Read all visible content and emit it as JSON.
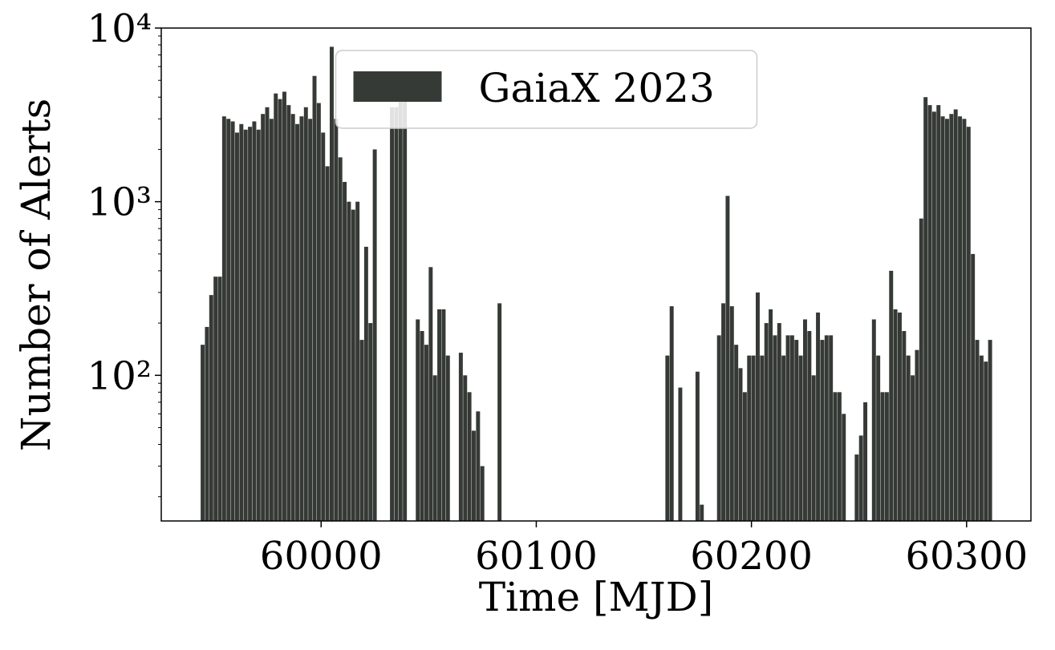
{
  "chart_data": {
    "type": "histogram",
    "xlabel": "Time [MJD]",
    "ylabel": "Number of Alerts",
    "log_y": true,
    "legend": "upper center",
    "xlim": [
      59925.7,
      60329.9
    ],
    "xticks": [
      60000,
      60100,
      60200,
      60300
    ],
    "ylim": [
      14.5,
      10000
    ],
    "yticks": [
      {
        "value": 100,
        "label": "10²"
      },
      {
        "value": 1000,
        "label": "10³"
      },
      {
        "value": 10000,
        "label": "10⁴"
      }
    ],
    "yminorticks": [
      20,
      30,
      40,
      50,
      60,
      70,
      80,
      90,
      200,
      300,
      400,
      500,
      600,
      700,
      800,
      900,
      2000,
      3000,
      4000,
      5000,
      6000,
      7000,
      8000,
      9000
    ],
    "series": [
      {
        "name": "GaiaX 2023",
        "color": "#363a36",
        "bins": [
          59944,
          59946,
          59948,
          59950,
          59952,
          59954,
          59956,
          59958,
          59960,
          59962,
          59964,
          59966,
          59968,
          59970,
          59972,
          59974,
          59976,
          59978,
          59980,
          59982,
          59984,
          59986,
          59988,
          59990,
          59992,
          59994,
          59996,
          59998,
          60000,
          60002,
          60004,
          60006,
          60008,
          60010,
          60012,
          60014,
          60016,
          60018,
          60020,
          60022,
          60024,
          60026,
          60028,
          60030,
          60032,
          60034,
          60036,
          60038,
          60040,
          60042,
          60044,
          60046,
          60048,
          60050,
          60052,
          60054,
          60056,
          60058,
          60060,
          60062,
          60064,
          60066,
          60068,
          60070,
          60072,
          60074,
          60076,
          60078,
          60080,
          60082,
          60084,
          60086,
          60088,
          60090,
          60092,
          60094,
          60096,
          60098,
          60100,
          60102,
          60104,
          60106,
          60108,
          60110,
          60112,
          60114,
          60116,
          60118,
          60120,
          60122,
          60124,
          60126,
          60128,
          60130,
          60132,
          60134,
          60136,
          60138,
          60140,
          60142,
          60144,
          60146,
          60148,
          60150,
          60152,
          60154,
          60156,
          60158,
          60160,
          60162,
          60164,
          60166,
          60168,
          60170,
          60172,
          60174,
          60176,
          60178,
          60180,
          60182,
          60184,
          60186,
          60188,
          60190,
          60192,
          60194,
          60196,
          60198,
          60200,
          60202,
          60204,
          60206,
          60208,
          60210,
          60212,
          60214,
          60216,
          60218,
          60220,
          60222,
          60224,
          60226,
          60228,
          60230,
          60232,
          60234,
          60236,
          60238,
          60240,
          60242,
          60244,
          60246,
          60248,
          60250,
          60252,
          60254,
          60256,
          60258,
          60260,
          60262,
          60264,
          60266,
          60268,
          60270,
          60272,
          60274,
          60276,
          60278,
          60280,
          60282,
          60284,
          60286,
          60288,
          60290,
          60292,
          60294,
          60296,
          60298,
          60300,
          60302,
          60304,
          60306,
          60308,
          60310,
          60312
        ],
        "values": [
          150,
          190,
          290,
          370,
          370,
          3100,
          3000,
          2900,
          2500,
          2800,
          2600,
          2700,
          2900,
          2600,
          3200,
          3500,
          3000,
          4200,
          3900,
          4300,
          3600,
          3200,
          2800,
          3100,
          3500,
          3000,
          5300,
          3700,
          2500,
          1600,
          7800,
          3000,
          1800,
          1300,
          1000,
          900,
          1000,
          160,
          550,
          200,
          2000,
          0,
          0,
          0,
          3500,
          3500,
          5500,
          5500,
          0,
          0,
          210,
          180,
          150,
          420,
          100,
          240,
          240,
          130,
          0,
          0,
          135,
          100,
          80,
          48,
          62,
          30,
          0,
          0,
          0,
          260,
          0,
          0,
          0,
          0,
          0,
          0,
          0,
          0,
          0,
          0,
          0,
          0,
          0,
          0,
          0,
          0,
          0,
          0,
          0,
          0,
          0,
          0,
          0,
          0,
          0,
          0,
          0,
          0,
          0,
          0,
          0,
          0,
          0,
          0,
          0,
          0,
          0,
          0,
          130,
          250,
          0,
          85,
          0,
          0,
          0,
          105,
          18,
          0,
          0,
          0,
          170,
          260,
          1080,
          250,
          150,
          110,
          80,
          130,
          130,
          300,
          130,
          200,
          240,
          170,
          200,
          130,
          170,
          170,
          160,
          130,
          210,
          180,
          100,
          230,
          160,
          170,
          170,
          80,
          80,
          60,
          0,
          0,
          35,
          45,
          70,
          0,
          210,
          130,
          80,
          80,
          400,
          240,
          230,
          180,
          130,
          100,
          140,
          800,
          4000,
          3600,
          3300,
          3600,
          3100,
          3000,
          3200,
          3400,
          3100,
          3000,
          2700,
          500,
          160,
          130,
          120,
          160
        ]
      }
    ]
  }
}
